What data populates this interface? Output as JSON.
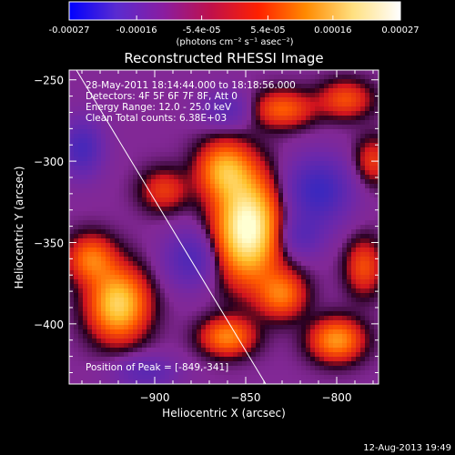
{
  "colorbar": {
    "tick_labels": [
      "-0.00027",
      "-0.00016",
      "-5.4e-05",
      "5.4e-05",
      "0.00016",
      "0.00027"
    ],
    "tick_values": [
      -0.00027,
      -0.00016,
      -5.4e-05,
      5.4e-05,
      0.00016,
      0.00027
    ],
    "range": [
      -0.00027,
      0.00027
    ],
    "unit_label": "(photons cm⁻² s⁻¹ asec⁻²)",
    "colors": [
      "#0000ff",
      "#5a2bd0",
      "#8a1da0",
      "#c0104a",
      "#ff2000",
      "#ff8a00",
      "#ffe080",
      "#ffffff"
    ]
  },
  "chart_data": {
    "type": "heatmap",
    "title": "Reconstructed RHESSI Image",
    "xlabel": "Heliocentric X (arcsec)",
    "ylabel": "Heliocentric Y (arcsec)",
    "xlim": [
      -947,
      -777
    ],
    "ylim": [
      -437,
      -244
    ],
    "x_ticks": [
      -900,
      -850,
      -800
    ],
    "x_tick_labels": [
      "−900",
      "−850",
      "−800"
    ],
    "y_ticks": [
      -250,
      -300,
      -350,
      -400
    ],
    "y_tick_labels": [
      "−250",
      "−300",
      "−350",
      "−400"
    ],
    "annotations": [
      "28-May-2011 18:14:44.000 to 18:18:56.000",
      "Detectors: 4F 5F 6F 7F 8F, Att 0",
      "Energy Range: 12.0 - 25.0 keV",
      "Clean    Total counts: 6.38E+03"
    ],
    "peak_label": "Position of Peak = [-849,-341]",
    "peak": {
      "x": -849,
      "y": -341
    },
    "limb_line": [
      {
        "x": -943,
        "y": -244
      },
      {
        "x": -839,
        "y": -437
      }
    ],
    "sources": [
      {
        "x": -849,
        "y": -341,
        "amp": 1.0,
        "sx": 12,
        "sy": 22
      },
      {
        "x": -862,
        "y": -305,
        "amp": 0.55,
        "sx": 10,
        "sy": 12
      },
      {
        "x": -920,
        "y": -388,
        "amp": 0.75,
        "sx": 11,
        "sy": 15
      },
      {
        "x": -935,
        "y": -360,
        "amp": 0.45,
        "sx": 9,
        "sy": 10
      },
      {
        "x": -830,
        "y": -382,
        "amp": 0.45,
        "sx": 9,
        "sy": 10
      },
      {
        "x": -860,
        "y": -408,
        "amp": 0.5,
        "sx": 10,
        "sy": 8
      },
      {
        "x": -800,
        "y": -410,
        "amp": 0.55,
        "sx": 10,
        "sy": 9
      },
      {
        "x": -785,
        "y": -365,
        "amp": 0.35,
        "sx": 7,
        "sy": 12
      },
      {
        "x": -830,
        "y": -268,
        "amp": 0.4,
        "sx": 12,
        "sy": 8
      },
      {
        "x": -795,
        "y": -262,
        "amp": 0.35,
        "sx": 10,
        "sy": 8
      },
      {
        "x": -895,
        "y": -318,
        "amp": 0.3,
        "sx": 9,
        "sy": 9
      },
      {
        "x": -780,
        "y": -300,
        "amp": 0.3,
        "sx": 7,
        "sy": 10
      },
      {
        "x": -810,
        "y": -318,
        "amp": -0.55,
        "sx": 12,
        "sy": 14
      },
      {
        "x": -880,
        "y": -360,
        "amp": -0.4,
        "sx": 10,
        "sy": 12
      },
      {
        "x": -940,
        "y": -292,
        "amp": -0.45,
        "sx": 8,
        "sy": 12
      },
      {
        "x": -860,
        "y": -268,
        "amp": -0.3,
        "sx": 10,
        "sy": 8
      },
      {
        "x": -820,
        "y": -346,
        "amp": -0.3,
        "sx": 9,
        "sy": 9
      },
      {
        "x": -905,
        "y": -430,
        "amp": -0.3,
        "sx": 12,
        "sy": 7
      }
    ]
  },
  "footer": {
    "timestamp": "12-Aug-2013 19:49"
  }
}
